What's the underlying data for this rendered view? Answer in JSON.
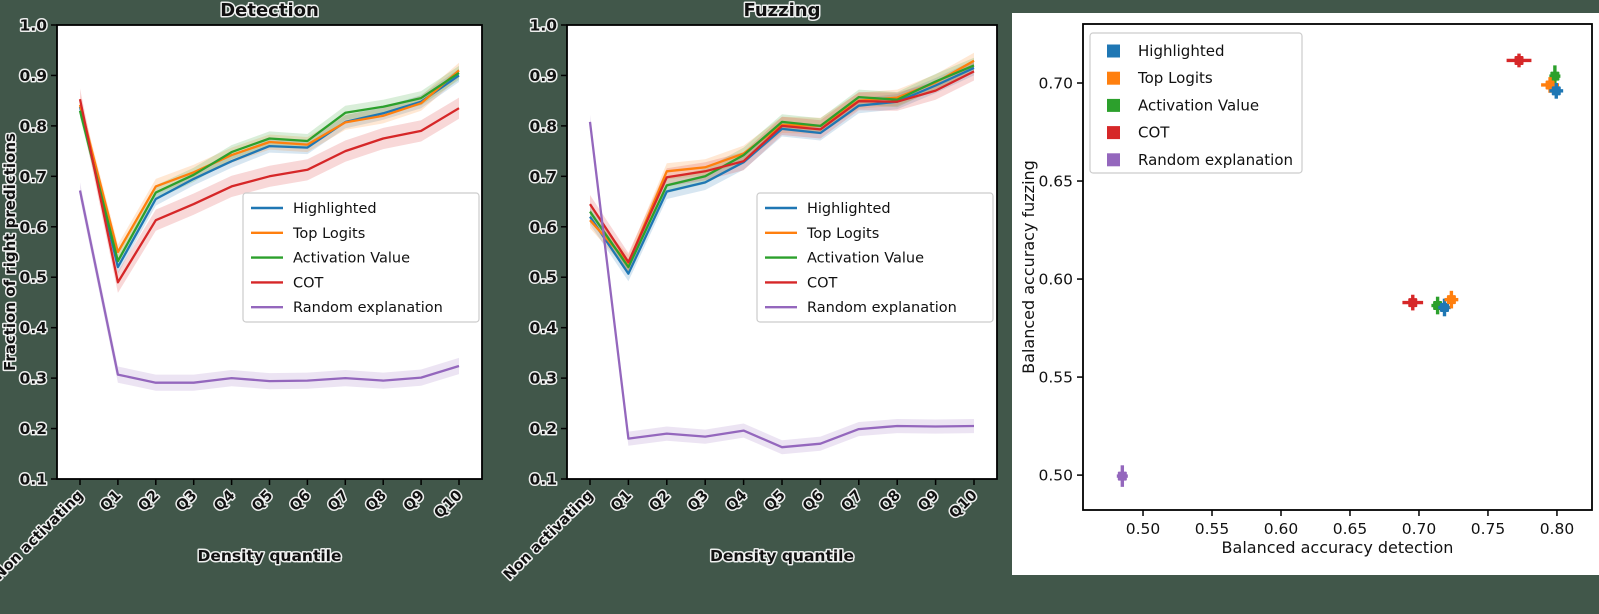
{
  "figure": {
    "background_color": "#41574a",
    "panel_color": "#ffffff",
    "text_color": "#111111",
    "axis_color": "#000000",
    "legend_border_color": "#cccccc"
  },
  "chart_data": [
    {
      "type": "line",
      "title": "Detection",
      "xlabel": "Density quantile",
      "ylabel": "Fraction of right predictions",
      "categories": [
        "Non activating",
        "Q1",
        "Q2",
        "Q3",
        "Q4",
        "Q5",
        "Q6",
        "Q7",
        "Q8",
        "Q9",
        "Q10"
      ],
      "yticks": [
        "0.1",
        "0.2",
        "0.3",
        "0.4",
        "0.5",
        "0.6",
        "0.7",
        "0.8",
        "0.9",
        "1.0"
      ],
      "ylim": [
        0.1,
        1.0
      ],
      "grid": false,
      "legend_position": "center-right",
      "series": [
        {
          "name": "Highlighted",
          "color": "#1f77b4",
          "band": 0.013,
          "values": [
            0.838,
            0.52,
            0.655,
            0.695,
            0.73,
            0.76,
            0.757,
            0.808,
            0.825,
            0.848,
            0.9
          ]
        },
        {
          "name": "Top Logits",
          "color": "#ff7f0e",
          "band": 0.015,
          "values": [
            0.842,
            0.55,
            0.68,
            0.708,
            0.742,
            0.768,
            0.763,
            0.807,
            0.82,
            0.845,
            0.91
          ]
        },
        {
          "name": "Activation Value",
          "color": "#2ca02c",
          "band": 0.014,
          "values": [
            0.83,
            0.532,
            0.668,
            0.703,
            0.748,
            0.775,
            0.77,
            0.826,
            0.838,
            0.855,
            0.905
          ]
        },
        {
          "name": "COT",
          "color": "#d62728",
          "band": 0.021,
          "values": [
            0.853,
            0.49,
            0.613,
            0.645,
            0.68,
            0.7,
            0.713,
            0.75,
            0.775,
            0.79,
            0.835
          ]
        },
        {
          "name": "Random explanation",
          "color": "#9467bd",
          "band": 0.016,
          "values": [
            0.672,
            0.307,
            0.291,
            0.291,
            0.3,
            0.294,
            0.295,
            0.3,
            0.295,
            0.301,
            0.324
          ]
        }
      ]
    },
    {
      "type": "line",
      "title": "Fuzzing",
      "xlabel": "Density quantile",
      "ylabel": "",
      "categories": [
        "Non activating",
        "Q1",
        "Q2",
        "Q3",
        "Q4",
        "Q5",
        "Q6",
        "Q7",
        "Q8",
        "Q9",
        "Q10"
      ],
      "yticks": [
        "0.1",
        "0.2",
        "0.3",
        "0.4",
        "0.5",
        "0.6",
        "0.7",
        "0.8",
        "0.9",
        "1.0"
      ],
      "ylim": [
        0.1,
        1.0
      ],
      "grid": false,
      "legend_position": "center-right",
      "series": [
        {
          "name": "Highlighted",
          "color": "#1f77b4",
          "band": 0.015,
          "values": [
            0.62,
            0.507,
            0.67,
            0.688,
            0.728,
            0.794,
            0.786,
            0.84,
            0.848,
            0.88,
            0.915
          ]
        },
        {
          "name": "Top Logits",
          "color": "#ff7f0e",
          "band": 0.016,
          "values": [
            0.613,
            0.528,
            0.71,
            0.718,
            0.745,
            0.802,
            0.8,
            0.85,
            0.856,
            0.886,
            0.929
          ]
        },
        {
          "name": "Activation Value",
          "color": "#2ca02c",
          "band": 0.015,
          "values": [
            0.63,
            0.52,
            0.682,
            0.7,
            0.742,
            0.808,
            0.8,
            0.857,
            0.852,
            0.888,
            0.92
          ]
        },
        {
          "name": "COT",
          "color": "#d62728",
          "band": 0.018,
          "values": [
            0.645,
            0.53,
            0.698,
            0.71,
            0.73,
            0.8,
            0.793,
            0.849,
            0.848,
            0.87,
            0.908
          ]
        },
        {
          "name": "Random explanation",
          "color": "#9467bd",
          "band": 0.014,
          "values": [
            0.808,
            0.18,
            0.19,
            0.184,
            0.196,
            0.163,
            0.17,
            0.199,
            0.205,
            0.204,
            0.205
          ]
        }
      ]
    },
    {
      "type": "scatter",
      "title": "",
      "xlabel": "Balanced accuracy detection",
      "ylabel": "Balanced accuracy fuzzing",
      "xticks": [
        "0.50",
        "0.55",
        "0.60",
        "0.65",
        "0.70",
        "0.75",
        "0.80"
      ],
      "yticks": [
        "0.50",
        "0.55",
        "0.60",
        "0.65",
        "0.70"
      ],
      "xlim": [
        0.4565,
        0.8254
      ],
      "ylim": [
        0.4822,
        0.7301
      ],
      "grid": false,
      "legend_position": "upper-left",
      "legend": [
        {
          "name": "Highlighted",
          "color": "#1f77b4"
        },
        {
          "name": "Top Logits",
          "color": "#ff7f0e"
        },
        {
          "name": "Activation Value",
          "color": "#2ca02c"
        },
        {
          "name": "COT",
          "color": "#d62728"
        },
        {
          "name": "Random explanation",
          "color": "#9467bd"
        }
      ],
      "points": [
        {
          "series": "COT",
          "color": "#d62728",
          "x": 0.7725,
          "y": 0.7115,
          "xerr": 0.009,
          "yerr": 0.0035
        },
        {
          "series": "Activation Value",
          "color": "#2ca02c",
          "x": 0.7985,
          "y": 0.7035,
          "xerr": 0.004,
          "yerr": 0.0055
        },
        {
          "series": "Top Logits",
          "color": "#ff7f0e",
          "x": 0.795,
          "y": 0.699,
          "xerr": 0.0065,
          "yerr": 0.004
        },
        {
          "series": "Highlighted",
          "color": "#1f77b4",
          "x": 0.7995,
          "y": 0.696,
          "xerr": 0.005,
          "yerr": 0.004
        },
        {
          "series": "COT",
          "color": "#d62728",
          "x": 0.6955,
          "y": 0.588,
          "xerr": 0.0075,
          "yerr": 0.004
        },
        {
          "series": "Activation Value",
          "color": "#2ca02c",
          "x": 0.7135,
          "y": 0.5865,
          "xerr": 0.0045,
          "yerr": 0.0045
        },
        {
          "series": "Highlighted",
          "color": "#1f77b4",
          "x": 0.7185,
          "y": 0.5855,
          "xerr": 0.0045,
          "yerr": 0.0045
        },
        {
          "series": "Top Logits",
          "color": "#ff7f0e",
          "x": 0.7235,
          "y": 0.5895,
          "xerr": 0.005,
          "yerr": 0.0045
        },
        {
          "series": "Random explanation",
          "color": "#9467bd",
          "x": 0.485,
          "y": 0.4995,
          "xerr": 0.004,
          "yerr": 0.0055
        }
      ]
    }
  ]
}
